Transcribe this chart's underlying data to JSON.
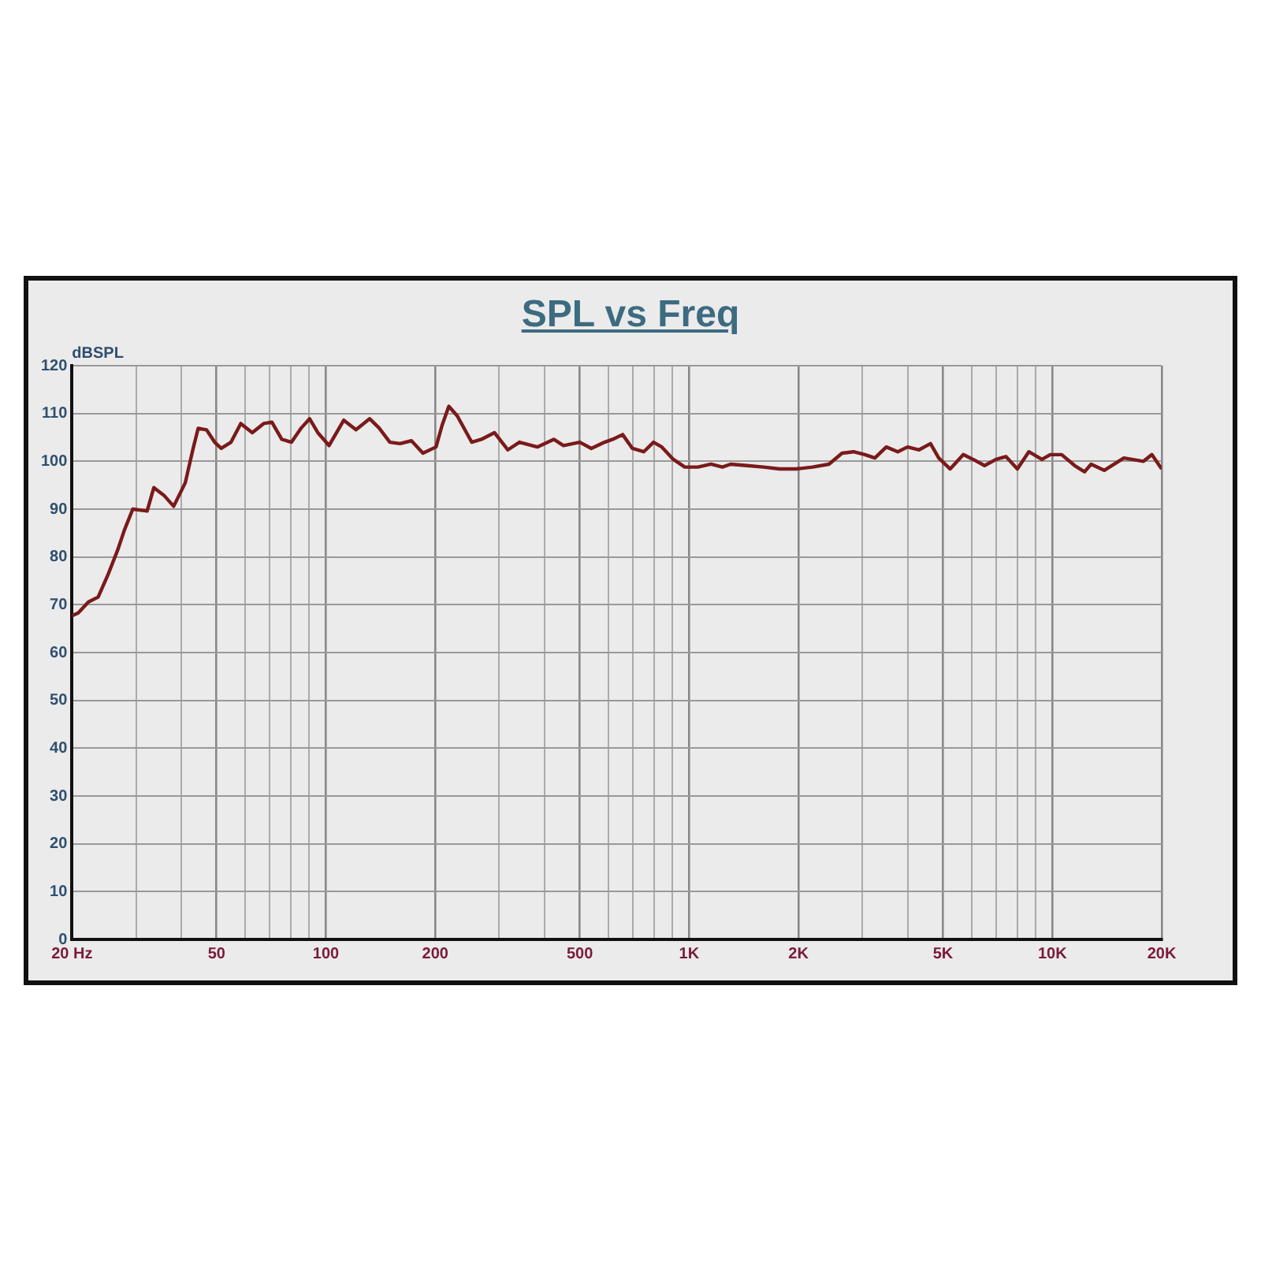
{
  "chart_data": {
    "type": "line",
    "title": "SPL vs Freq",
    "ylabel": "dBSPL",
    "log": "x",
    "grid": true,
    "legend": false,
    "marker": "none",
    "line_style": "solid",
    "xlim": [
      20,
      20000
    ],
    "ylim": [
      0,
      120
    ],
    "yticks": [
      0,
      10,
      20,
      30,
      40,
      50,
      60,
      70,
      80,
      90,
      100,
      110,
      120
    ],
    "xticks": [
      {
        "value": 20,
        "label": "20 Hz"
      },
      {
        "value": 30,
        "label": null
      },
      {
        "value": 40,
        "label": null
      },
      50,
      {
        "value": 60,
        "label": null
      },
      {
        "value": 70,
        "label": null
      },
      {
        "value": 80,
        "label": null
      },
      {
        "value": 90,
        "label": null
      },
      100,
      200,
      {
        "value": 300,
        "label": null
      },
      {
        "value": 400,
        "label": null
      },
      500,
      {
        "value": 600,
        "label": null
      },
      {
        "value": 700,
        "label": null
      },
      {
        "value": 800,
        "label": null
      },
      {
        "value": 900,
        "label": null
      },
      {
        "value": 1000,
        "label": "1K"
      },
      {
        "value": 2000,
        "label": "2K"
      },
      {
        "value": 3000,
        "label": null
      },
      {
        "value": 4000,
        "label": null
      },
      {
        "value": 5000,
        "label": "5K"
      },
      {
        "value": 6000,
        "label": null
      },
      {
        "value": 7000,
        "label": null
      },
      {
        "value": 8000,
        "label": null
      },
      {
        "value": 9000,
        "label": null
      },
      {
        "value": 10000,
        "label": "10K"
      },
      {
        "value": 20000,
        "label": "20K"
      }
    ],
    "series": [
      {
        "color": "#7a1a1a",
        "x": [
          20,
          20.8,
          22.2,
          23.6,
          25.1,
          26.7,
          27.9,
          29.4,
          32.2,
          33.6,
          35.8,
          38.1,
          41,
          43.1,
          44.5,
          46.9,
          49.4,
          51.5,
          54.8,
          58.3,
          62.7,
          67.4,
          71,
          75.6,
          80.4,
          85.6,
          90.2,
          95,
          102,
          112,
          121,
          132,
          140,
          150,
          160,
          172,
          185,
          201,
          209,
          218,
          230,
          252,
          268,
          291,
          317,
          341,
          382,
          424,
          451,
          500,
          538,
          585,
          616,
          656,
          698,
          750,
          798,
          841,
          905,
          973,
          1057,
          1149,
          1235,
          1301,
          1444,
          1602,
          1777,
          1971,
          2187,
          2426,
          2637,
          2836,
          3049,
          3246,
          3490,
          3753,
          3994,
          4296,
          4619,
          4866,
          5233,
          5687,
          6052,
          6508,
          6998,
          7449,
          8010,
          8614,
          9362,
          9866,
          10609,
          11524,
          12264,
          12784,
          13891,
          15737,
          17823,
          18792,
          20000
        ],
        "values": [
          67.7,
          68.3,
          70.6,
          71.6,
          76.2,
          81.4,
          85.7,
          90,
          89.6,
          94.5,
          92.9,
          90.6,
          95.5,
          102.7,
          106.9,
          106.6,
          104,
          102.7,
          104,
          107.9,
          106,
          107.9,
          108.2,
          104.6,
          104,
          107,
          108.9,
          106,
          103.3,
          108.6,
          106.6,
          108.9,
          107,
          104,
          103.7,
          104.3,
          101.7,
          103,
          107.6,
          111.5,
          109.5,
          104,
          104.6,
          106,
          102.4,
          104,
          103,
          104.6,
          103.3,
          104,
          102.7,
          104,
          104.6,
          105.6,
          102.7,
          102,
          104,
          103,
          100.4,
          98.8,
          98.8,
          99.4,
          98.8,
          99.4,
          99.1,
          98.8,
          98.4,
          98.4,
          98.8,
          99.4,
          101.7,
          102,
          101.4,
          100.7,
          103,
          102,
          103,
          102.4,
          103.7,
          100.7,
          98.4,
          101.4,
          100.4,
          99.1,
          100.4,
          101,
          98.4,
          102,
          100.4,
          101.4,
          101.4,
          99.1,
          97.8,
          99.4,
          98.1,
          100.7,
          100,
          101.4,
          98.4
        ]
      }
    ]
  }
}
